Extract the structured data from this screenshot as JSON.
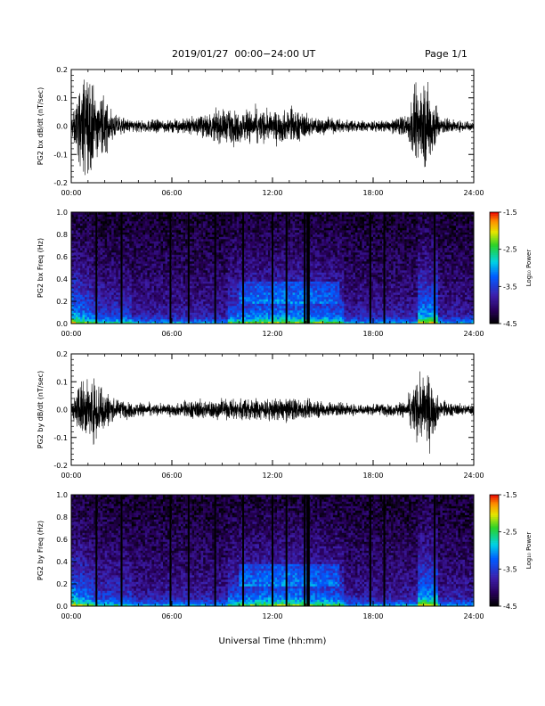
{
  "header": {
    "title": "2019/01/27  00:00−24:00 UT",
    "page": "Page 1/1"
  },
  "chart_data": [
    {
      "type": "line",
      "ylabel": "PG2 bx dB/dt (nT/sec)",
      "ylim": [
        -0.2,
        0.2
      ],
      "yticks": [
        "0.2",
        "0.1",
        "0.0",
        "-0.1",
        "-0.2"
      ],
      "xlim": [
        "00:00",
        "24:00"
      ],
      "xticks": [
        "00:00",
        "06:00",
        "12:00",
        "18:00",
        "24:00"
      ],
      "series": [
        {
          "x": [
            "00:00",
            "00:30",
            "00:45",
            "01:00",
            "01:30",
            "02:00",
            "02:30",
            "03:00",
            "04:00",
            "05:00",
            "06:00",
            "07:00",
            "08:00",
            "08:30",
            "09:00",
            "10:00",
            "11:00",
            "12:00",
            "13:00",
            "13:30",
            "14:00",
            "15:00",
            "16:00",
            "17:00",
            "18:00",
            "19:00",
            "20:00",
            "20:30",
            "21:00",
            "21:15",
            "21:30",
            "22:00",
            "23:00",
            "24:00"
          ],
          "amplitude": [
            0.03,
            0.13,
            0.2,
            0.18,
            0.11,
            0.1,
            0.05,
            0.03,
            0.02,
            0.025,
            0.02,
            0.03,
            0.04,
            0.05,
            0.06,
            0.055,
            0.06,
            0.05,
            0.06,
            0.055,
            0.04,
            0.03,
            0.025,
            0.02,
            0.02,
            0.02,
            0.04,
            0.13,
            0.15,
            0.16,
            0.13,
            0.03,
            0.02,
            0.02
          ]
        }
      ]
    },
    {
      "type": "heatmap",
      "ylabel": "PG2 bx Freq (Hz)",
      "ylim": [
        0.0,
        1.0
      ],
      "yticks": [
        "1.0",
        "0.8",
        "0.6",
        "0.4",
        "0.2",
        "0.0"
      ],
      "xlim": [
        "00:00",
        "24:00"
      ],
      "xticks": [
        "00:00",
        "06:00",
        "12:00",
        "18:00",
        "24:00"
      ],
      "colorbar": {
        "label": "Log₁₀ Power",
        "range": [
          -4.5,
          -1.5
        ],
        "ticks": [
          "-1.5",
          "-2.5",
          "-3.5",
          "-4.5"
        ]
      },
      "gaps": [
        "01:30",
        "03:00",
        "05:55",
        "07:00",
        "08:35",
        "10:15",
        "12:00",
        "12:50",
        "13:55",
        "14:05",
        "14:10",
        "17:50",
        "18:40",
        "21:40"
      ],
      "features": [
        {
          "span": [
            "00:00",
            "01:00"
          ],
          "description_freq_max": 0.35
        },
        {
          "span": [
            "10:00",
            "16:00"
          ],
          "description_freq_max": 0.35
        },
        {
          "span": [
            "20:50",
            "21:40"
          ],
          "description_freq_max": 0.6
        }
      ]
    },
    {
      "type": "line",
      "ylabel": "PG2 by dB/dt (nT/sec)",
      "ylim": [
        -0.2,
        0.2
      ],
      "yticks": [
        "0.2",
        "0.1",
        "0.0",
        "-0.1",
        "-0.2"
      ],
      "xlim": [
        "00:00",
        "24:00"
      ],
      "xticks": [
        "00:00",
        "06:00",
        "12:00",
        "18:00",
        "24:00"
      ],
      "series": [
        {
          "x": [
            "00:00",
            "00:30",
            "00:45",
            "01:00",
            "01:30",
            "02:00",
            "02:30",
            "03:00",
            "04:00",
            "05:00",
            "06:00",
            "07:00",
            "08:00",
            "09:00",
            "10:00",
            "11:00",
            "12:00",
            "13:00",
            "14:00",
            "15:00",
            "16:00",
            "17:00",
            "18:00",
            "19:00",
            "20:00",
            "20:30",
            "21:00",
            "21:15",
            "21:30",
            "22:00",
            "23:00",
            "24:00"
          ],
          "amplitude": [
            0.03,
            0.08,
            0.11,
            0.1,
            0.12,
            0.08,
            0.04,
            0.03,
            0.025,
            0.02,
            0.02,
            0.03,
            0.035,
            0.035,
            0.04,
            0.04,
            0.04,
            0.04,
            0.035,
            0.03,
            0.025,
            0.02,
            0.02,
            0.02,
            0.03,
            0.1,
            0.12,
            0.13,
            0.1,
            0.03,
            0.02,
            0.02
          ]
        }
      ]
    },
    {
      "type": "heatmap",
      "ylabel": "PG2 by Freq (Hz)",
      "ylim": [
        0.0,
        1.0
      ],
      "yticks": [
        "1.0",
        "0.8",
        "0.6",
        "0.4",
        "0.2",
        "0.0"
      ],
      "xlim": [
        "00:00",
        "24:00"
      ],
      "xticks": [
        "00:00",
        "06:00",
        "12:00",
        "18:00",
        "24:00"
      ],
      "colorbar": {
        "label": "Log₁₀ Power",
        "range": [
          -4.5,
          -1.5
        ],
        "ticks": [
          "-1.5",
          "-2.5",
          "-3.5",
          "-4.5"
        ]
      },
      "gaps": [
        "01:30",
        "03:00",
        "05:55",
        "07:00",
        "08:35",
        "10:15",
        "12:00",
        "12:50",
        "13:55",
        "14:05",
        "14:10",
        "17:50",
        "18:40",
        "21:40"
      ],
      "features": [
        {
          "span": [
            "00:00",
            "01:00"
          ],
          "description_freq_max": 0.35
        },
        {
          "span": [
            "10:00",
            "16:00"
          ],
          "description_freq_max": 0.35
        },
        {
          "span": [
            "20:50",
            "21:40"
          ],
          "description_freq_max": 0.6
        }
      ]
    }
  ],
  "xlabel": "Universal Time (hh:mm)",
  "colors": {
    "trace": "#000000",
    "background": "#ffffff"
  }
}
